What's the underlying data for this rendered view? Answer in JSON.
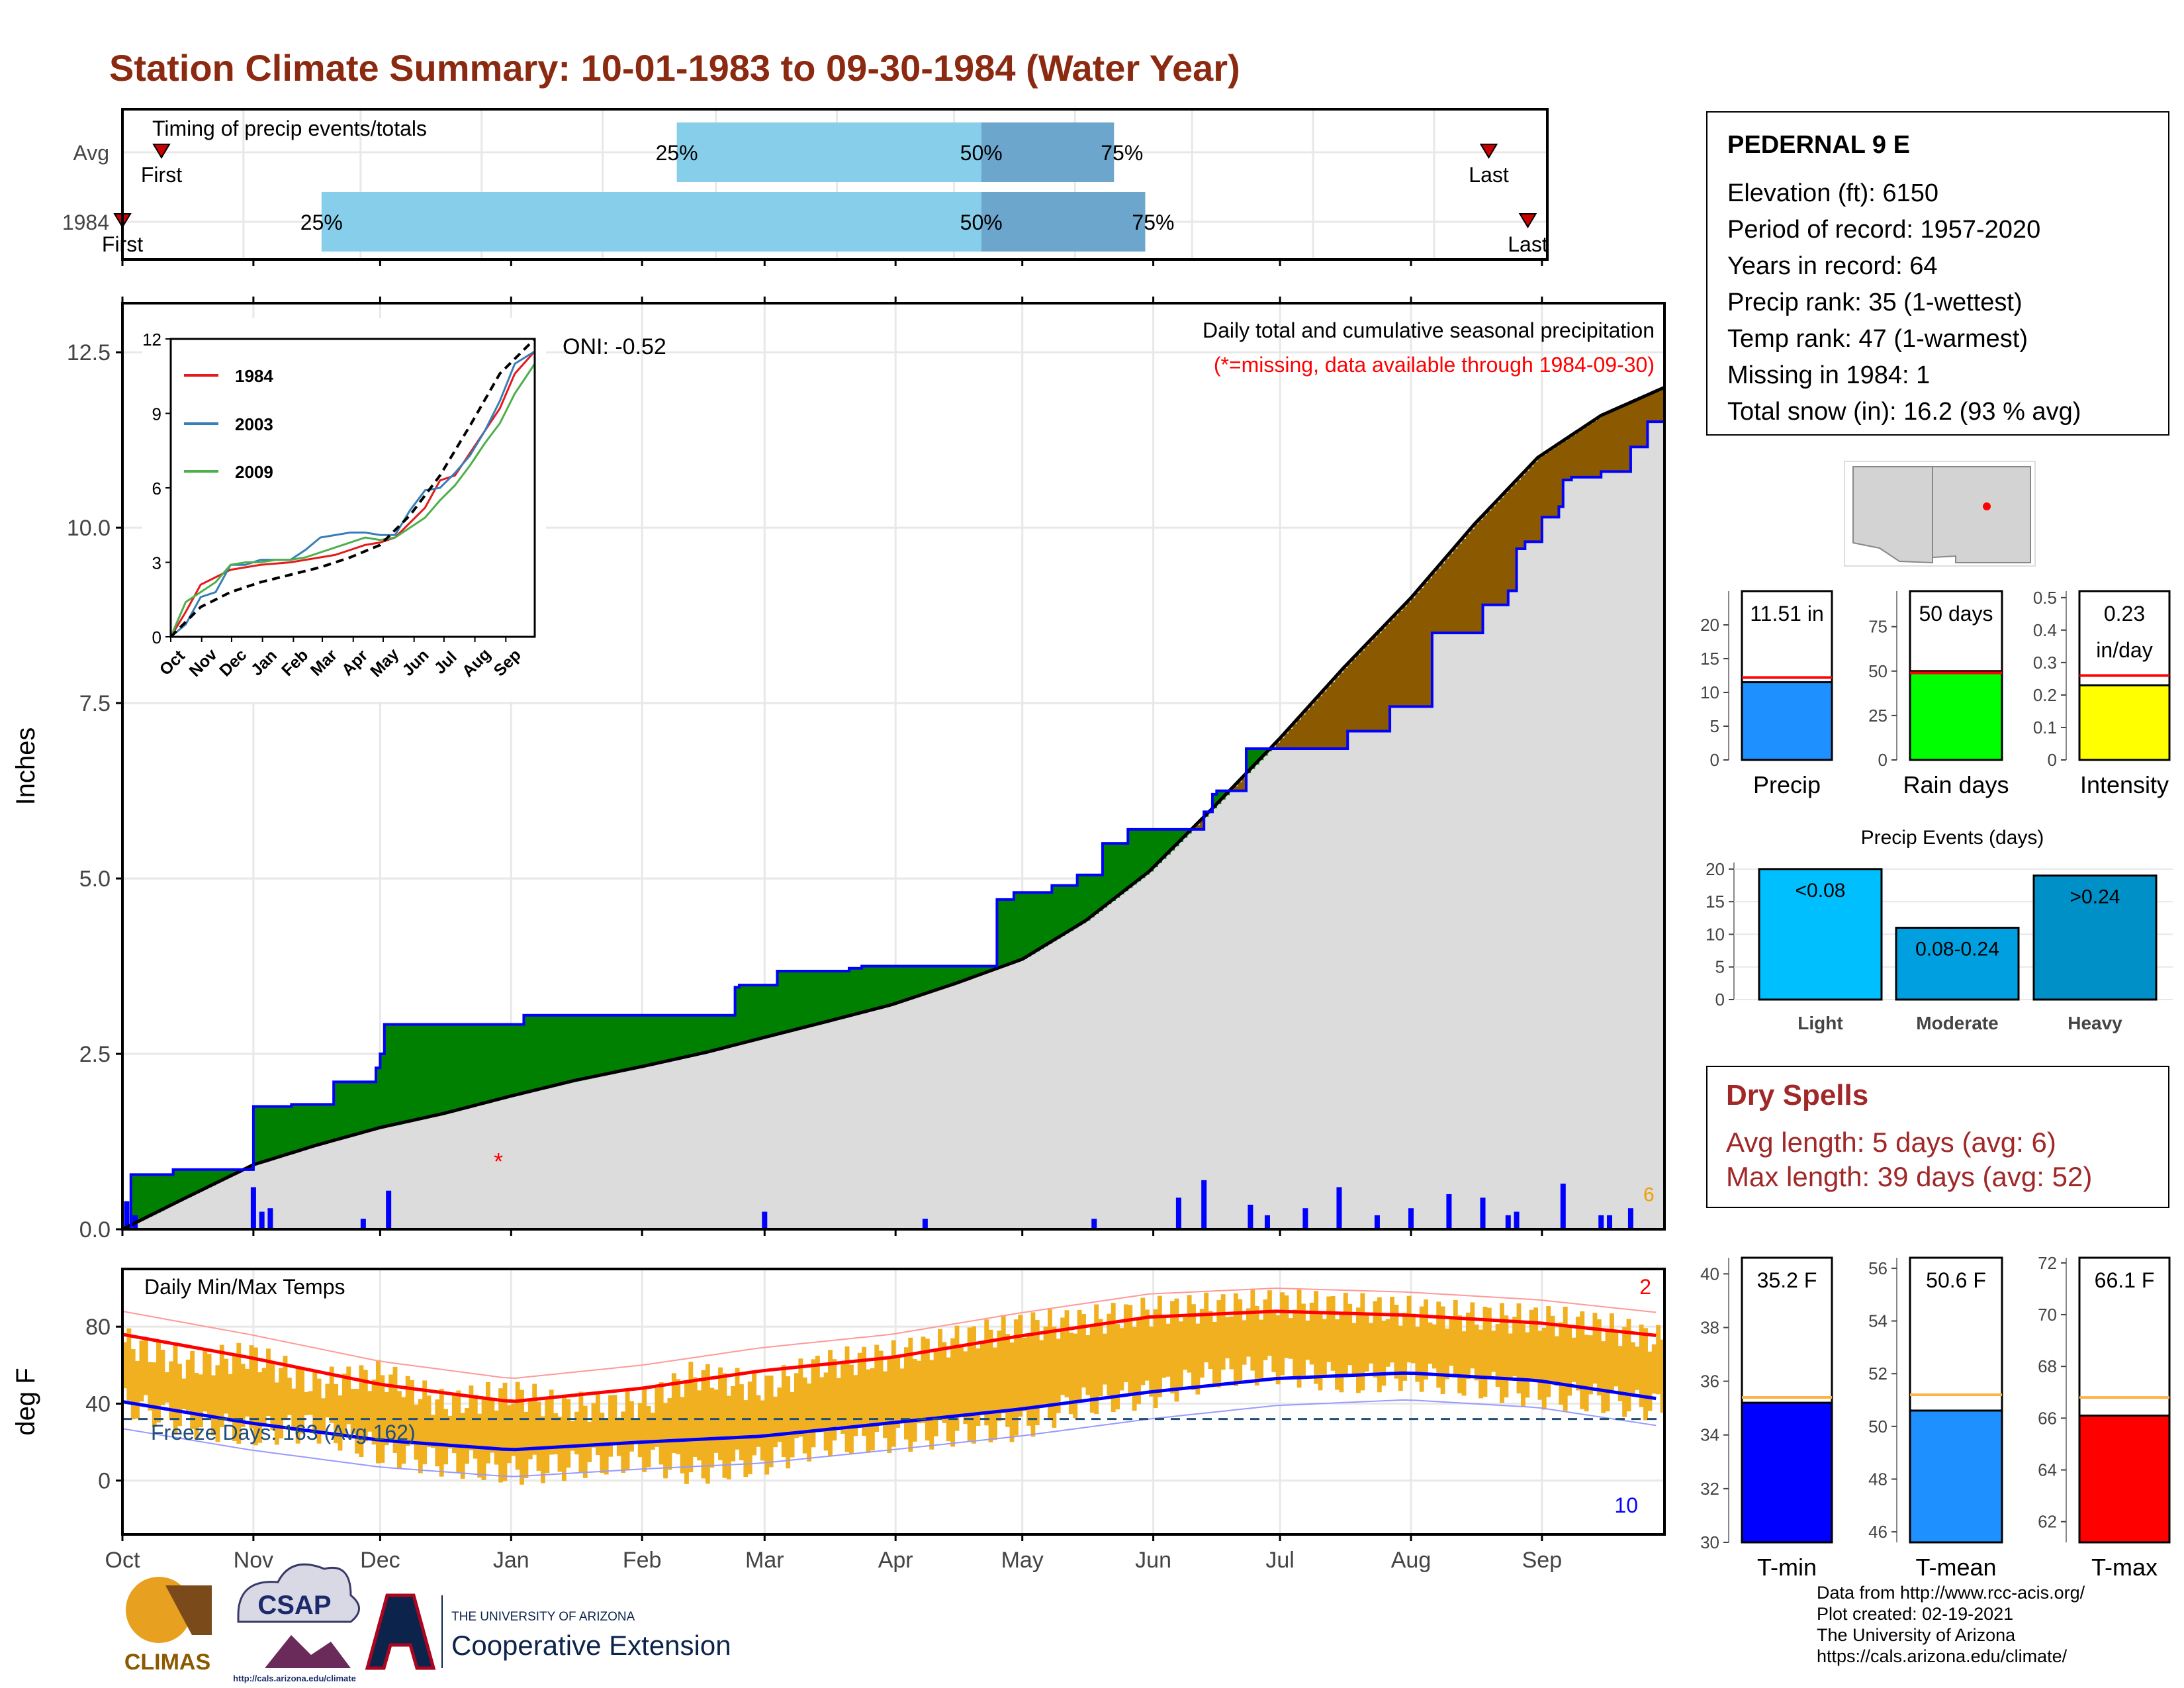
{
  "page": {
    "title": "Station Climate Summary: 10-01-1983 to 09-30-1984 (Water Year)"
  },
  "colors": {
    "title": "#8b2a10",
    "obs_line": "#0000ff",
    "avg_line": "#000000",
    "surplus": "#008000",
    "deficit": "#8b5a00",
    "bars": "#0000ff",
    "temp_bars": "#f0b020",
    "tmax_avg": "#ff0000",
    "tmin_avg": "#0000ff"
  },
  "timing": {
    "label": "Timing of precip events/totals",
    "rows": [
      {
        "name": "Avg",
        "first_label": "First",
        "last_label": "Last",
        "first_day": 10,
        "last_day": 350,
        "p25": 142,
        "p50": 220,
        "p75": 254,
        "p25_label": "25%",
        "p50_label": "50%",
        "p75_label": "75%"
      },
      {
        "name": "1984",
        "first_label": "First",
        "last_label": "Last",
        "first_day": 0,
        "last_day": 360,
        "p25": 51,
        "p50": 220,
        "p75": 262,
        "p25_label": "25%",
        "p50_label": "50%",
        "p75_label": "75%"
      }
    ]
  },
  "months": [
    "Oct",
    "Nov",
    "Dec",
    "Jan",
    "Feb",
    "Mar",
    "Apr",
    "May",
    "Jun",
    "Jul",
    "Aug",
    "Sep"
  ],
  "chart_data": [
    {
      "type": "area",
      "title": "Daily total and cumulative seasonal precipitation",
      "subtitle": "(*=missing, data available through 1984-09-30)",
      "ylabel": "Inches",
      "ylim": [
        0,
        13.2
      ],
      "yticks": [
        0.0,
        2.5,
        5.0,
        7.5,
        10.0,
        12.5
      ],
      "ytick_labels": [
        "0.0",
        "2.5",
        "5.0",
        "7.5",
        "10.0",
        "12.5"
      ],
      "oni_label": "ONI: -0.52",
      "cumulative_observed": {
        "x": [
          0,
          2,
          12,
          20,
          31,
          40,
          50,
          60,
          61,
          62,
          95,
          145,
          146,
          155,
          172,
          175,
          179,
          207,
          211,
          220,
          226,
          232,
          238,
          256,
          258,
          259,
          262,
          266,
          282,
          290,
          300,
          310,
          310,
          322,
          328,
          330,
          332,
          336,
          340,
          341,
          343,
          350,
          357,
          361,
          365
        ],
        "y": [
          0.0,
          0.78,
          0.85,
          0.85,
          1.75,
          1.78,
          2.1,
          2.3,
          2.5,
          2.92,
          3.05,
          3.45,
          3.48,
          3.68,
          3.72,
          3.75,
          3.75,
          4.7,
          4.8,
          4.9,
          5.05,
          5.5,
          5.7,
          5.95,
          6.2,
          6.25,
          6.25,
          6.85,
          6.85,
          7.1,
          7.45,
          7.8,
          8.5,
          8.9,
          9.1,
          9.7,
          9.8,
          10.15,
          10.3,
          10.68,
          10.72,
          10.8,
          11.15,
          11.51,
          11.51
        ]
      },
      "cumulative_average": {
        "x": [
          0,
          15,
          31,
          46,
          61,
          76,
          92,
          107,
          123,
          138,
          151,
          166,
          182,
          197,
          213,
          228,
          243,
          258,
          274,
          289,
          305,
          320,
          335,
          350,
          365
        ],
        "y": [
          0.0,
          0.45,
          0.92,
          1.2,
          1.45,
          1.65,
          1.9,
          2.12,
          2.32,
          2.52,
          2.72,
          2.95,
          3.2,
          3.5,
          3.85,
          4.4,
          5.1,
          6.0,
          7.0,
          8.0,
          9.0,
          10.05,
          11.0,
          11.6,
          12.0
        ]
      },
      "daily_bars": {
        "x": [
          1,
          3,
          31,
          33,
          35,
          57,
          63,
          152,
          190,
          230,
          250,
          256,
          267,
          271,
          280,
          288,
          297,
          305,
          314,
          322,
          328,
          330,
          341,
          350,
          352,
          357
        ],
        "y": [
          0.4,
          0.2,
          0.6,
          0.25,
          0.3,
          0.15,
          0.55,
          0.25,
          0.15,
          0.15,
          0.45,
          0.7,
          0.35,
          0.2,
          0.3,
          0.6,
          0.2,
          0.3,
          0.5,
          0.45,
          0.2,
          0.25,
          0.65,
          0.2,
          0.2,
          0.3
        ]
      },
      "missing_marker": {
        "x": 89,
        "y": 0.98,
        "label": "*"
      },
      "corner_label": "6"
    },
    {
      "type": "line",
      "title": "",
      "ylim": [
        0,
        12
      ],
      "yticks": [
        0,
        3,
        6,
        9,
        12
      ],
      "legend": "top-left",
      "series": [
        {
          "name": "1984",
          "color": "#e41a1c",
          "x": [
            0,
            15,
            30,
            45,
            60,
            75,
            90,
            105,
            120,
            135,
            150,
            165,
            180,
            195,
            210,
            225,
            240,
            255,
            270,
            285,
            300,
            315,
            330,
            345,
            365
          ],
          "y": [
            0.0,
            1.0,
            2.1,
            2.4,
            2.7,
            2.8,
            2.9,
            2.95,
            3.0,
            3.1,
            3.2,
            3.3,
            3.5,
            3.7,
            3.8,
            4.0,
            4.6,
            5.2,
            6.3,
            6.5,
            7.4,
            8.3,
            9.2,
            10.6,
            11.5
          ]
        },
        {
          "name": "2003",
          "color": "#377eb8",
          "x": [
            0,
            15,
            30,
            45,
            60,
            75,
            90,
            105,
            120,
            135,
            150,
            165,
            180,
            195,
            210,
            225,
            240,
            255,
            270,
            285,
            300,
            315,
            330,
            345,
            365
          ],
          "y": [
            0.0,
            0.5,
            1.6,
            1.8,
            2.9,
            2.9,
            3.1,
            3.1,
            3.1,
            3.5,
            4.0,
            4.1,
            4.2,
            4.2,
            4.1,
            4.1,
            5.1,
            5.9,
            6.0,
            6.6,
            7.3,
            8.3,
            9.5,
            11.0,
            11.5
          ]
        },
        {
          "name": "2009",
          "color": "#4daf4a",
          "x": [
            0,
            15,
            30,
            45,
            60,
            75,
            90,
            105,
            120,
            135,
            150,
            165,
            180,
            195,
            210,
            225,
            240,
            255,
            270,
            285,
            300,
            315,
            330,
            345,
            365
          ],
          "y": [
            0.0,
            1.4,
            1.8,
            2.2,
            2.9,
            3.0,
            3.0,
            3.1,
            3.1,
            3.2,
            3.4,
            3.6,
            3.8,
            4.0,
            3.9,
            4.0,
            4.4,
            4.8,
            5.5,
            6.1,
            6.9,
            7.8,
            8.6,
            9.8,
            11.0
          ]
        },
        {
          "name": "avg",
          "color": "#000000",
          "dashed": true,
          "x": [
            0,
            30,
            60,
            90,
            120,
            150,
            180,
            210,
            240,
            270,
            300,
            330,
            365
          ],
          "y": [
            0.0,
            1.2,
            1.8,
            2.2,
            2.5,
            2.8,
            3.2,
            3.7,
            4.9,
            6.5,
            8.5,
            10.6,
            12.0
          ]
        }
      ]
    },
    {
      "type": "bar",
      "title": "",
      "series": [
        {
          "name": "Precip",
          "value": 11.51,
          "value_label": "11.51 in",
          "avg": 12.2,
          "ylim": [
            0,
            25
          ],
          "yticks": [
            0,
            5,
            10,
            15,
            20
          ],
          "color": "#1e90ff"
        },
        {
          "name": "Rain days",
          "value": 50,
          "value_label": "50 days",
          "avg": 49,
          "ylim": [
            0,
            95
          ],
          "yticks": [
            0,
            25,
            50,
            75
          ],
          "color": "#00ff00"
        },
        {
          "name": "Intensity",
          "value": 0.23,
          "value_label": "0.23",
          "value_label2": "in/day",
          "avg": 0.26,
          "ylim": [
            0,
            0.52
          ],
          "yticks": [
            0.0,
            0.1,
            0.2,
            0.3,
            0.4,
            0.5
          ],
          "color": "#ffff00"
        }
      ]
    },
    {
      "type": "bar",
      "title": "Precip Events (days)",
      "categories": [
        "Light",
        "Moderate",
        "Heavy"
      ],
      "value_labels": [
        "<0.08",
        "0.08-0.24",
        ">0.24"
      ],
      "values": [
        20,
        11,
        19
      ],
      "ylim": [
        0,
        21
      ],
      "yticks": [
        0,
        5,
        10,
        15,
        20
      ],
      "colors": [
        "#00bfff",
        "#00a0e0",
        "#0090c8"
      ]
    },
    {
      "type": "line",
      "title": "Daily Min/Max Temps",
      "ylabel": "deg F",
      "ylim": [
        -28,
        110
      ],
      "yticks": [
        0,
        40,
        80
      ],
      "freeze_label": "Freeze Days: 163 (Avg 162)",
      "freeze_line": 32,
      "tmax_record_count": "2",
      "tmin_record_count": "10",
      "tmax_avg": {
        "x": [
          0,
          30,
          61,
          92,
          123,
          151,
          182,
          212,
          243,
          273,
          304,
          335,
          365
        ],
        "y": [
          76,
          64,
          50,
          41,
          48,
          57,
          64,
          75,
          85,
          88,
          86,
          82,
          75
        ]
      },
      "tmin_avg": {
        "x": [
          0,
          30,
          61,
          92,
          123,
          151,
          182,
          212,
          243,
          273,
          304,
          335,
          365
        ],
        "y": [
          41,
          30,
          21,
          16,
          20,
          23,
          30,
          37,
          46,
          53,
          56,
          52,
          42
        ]
      },
      "obs_high": {
        "x": [
          0,
          15,
          30,
          45,
          61,
          75,
          92,
          105,
          123,
          135,
          151,
          165,
          182,
          195,
          212,
          225,
          243,
          258,
          273,
          290,
          304,
          320,
          335,
          350,
          365
        ],
        "y": [
          72,
          60,
          65,
          50,
          55,
          40,
          45,
          38,
          40,
          55,
          48,
          60,
          65,
          72,
          80,
          82,
          88,
          90,
          92,
          90,
          88,
          85,
          84,
          80,
          72
        ]
      },
      "obs_low": {
        "x": [
          0,
          15,
          30,
          45,
          61,
          75,
          92,
          105,
          123,
          135,
          151,
          165,
          182,
          195,
          212,
          225,
          243,
          258,
          273,
          290,
          304,
          320,
          335,
          350,
          365
        ],
        "y": [
          40,
          30,
          25,
          28,
          15,
          10,
          5,
          8,
          12,
          5,
          10,
          20,
          22,
          25,
          28,
          40,
          45,
          55,
          58,
          52,
          55,
          50,
          45,
          42,
          38
        ]
      }
    },
    {
      "type": "bar",
      "title": "",
      "series": [
        {
          "name": "T-min",
          "value": 35.2,
          "value_label": "35.2 F",
          "avg": 35.4,
          "ylim": [
            30,
            40.6
          ],
          "yticks": [
            30,
            32,
            34,
            36,
            38,
            40
          ],
          "color": "#0000ff"
        },
        {
          "name": "T-mean",
          "value": 50.6,
          "value_label": "50.6 F",
          "avg": 51.2,
          "ylim": [
            45.6,
            56.4
          ],
          "yticks": [
            46,
            48,
            50,
            52,
            54,
            56
          ],
          "color": "#1e90ff"
        },
        {
          "name": "T-max",
          "value": 66.1,
          "value_label": "66.1 F",
          "avg": 66.8,
          "ylim": [
            61.2,
            72.2
          ],
          "yticks": [
            62,
            64,
            66,
            68,
            70,
            72
          ],
          "color": "#ff0000"
        }
      ]
    }
  ],
  "station": {
    "name": "PEDERNAL 9 E",
    "lines": [
      "Elevation (ft): 6150",
      "Period of record: 1957-2020",
      "Years in record: 64",
      "Precip rank: 35 (1-wettest)",
      "Temp rank: 47 (1-warmest)",
      "Missing in 1984: 1",
      "Total snow (in): 16.2 (93 % avg)"
    ]
  },
  "dry_spells": {
    "title": "Dry Spells",
    "avg_length": "Avg length: 5 days (avg: 6)",
    "max_length": "Max length: 39 days (avg: 52)"
  },
  "credits": [
    "Data from http://www.rcc-acis.org/",
    "Plot created: 02-19-2021",
    "The University of Arizona",
    "https://cals.arizona.edu/climate/"
  ],
  "logos": {
    "climas": "CLIMAS",
    "csap": "CSAP",
    "csap_url": "http://cals.arizona.edu/climate",
    "ua_line1": "THE UNIVERSITY OF ARIZONA",
    "ua_line2": "Cooperative Extension"
  }
}
